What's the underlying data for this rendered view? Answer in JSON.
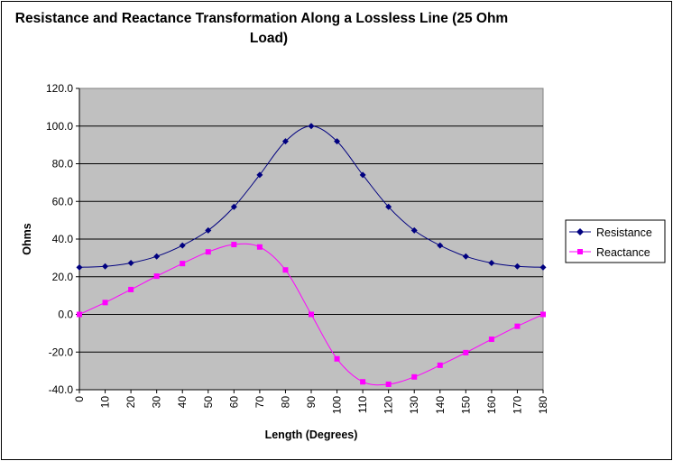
{
  "chart_data": {
    "type": "line",
    "title_lines": [
      "Resistance and Reactance Transformation Along a Lossless Line (25 Ohm",
      "Load)"
    ],
    "xlabel": "Length (Degrees)",
    "ylabel": "Ohms",
    "x": [
      0,
      10,
      20,
      30,
      40,
      50,
      60,
      70,
      80,
      90,
      100,
      110,
      120,
      130,
      140,
      150,
      160,
      170,
      180
    ],
    "x_tick_labels": [
      "0",
      "10",
      "20",
      "30",
      "40",
      "50",
      "60",
      "70",
      "80",
      "90",
      "100",
      "110",
      "120",
      "130",
      "140",
      "150",
      "160",
      "170",
      "180"
    ],
    "ylim": [
      -40,
      120
    ],
    "y_ticks": [
      -40,
      -20,
      0,
      20,
      40,
      60,
      80,
      100,
      120
    ],
    "y_tick_labels": [
      "-40.0",
      "-20.0",
      "0.0",
      "20.0",
      "40.0",
      "60.0",
      "80.0",
      "100.0",
      "120.0"
    ],
    "grid": "horizontal",
    "plot_background": "#c0c0c0",
    "legend_position": "right",
    "series": [
      {
        "name": "Resistance",
        "color": "#000080",
        "marker": "diamond",
        "values": [
          25.0,
          25.5,
          27.3,
          30.8,
          36.6,
          44.6,
          57.1,
          74.1,
          91.9,
          100.0,
          91.9,
          74.1,
          57.1,
          44.6,
          36.6,
          30.8,
          27.3,
          25.5,
          25.0
        ]
      },
      {
        "name": "Reactance",
        "color": "#ff00ff",
        "marker": "square",
        "values": [
          0.0,
          6.3,
          13.2,
          20.3,
          27.0,
          33.2,
          37.1,
          35.8,
          23.6,
          0.0,
          -23.6,
          -35.8,
          -37.1,
          -33.2,
          -27.0,
          -20.3,
          -13.2,
          -6.3,
          0.0
        ]
      }
    ]
  }
}
